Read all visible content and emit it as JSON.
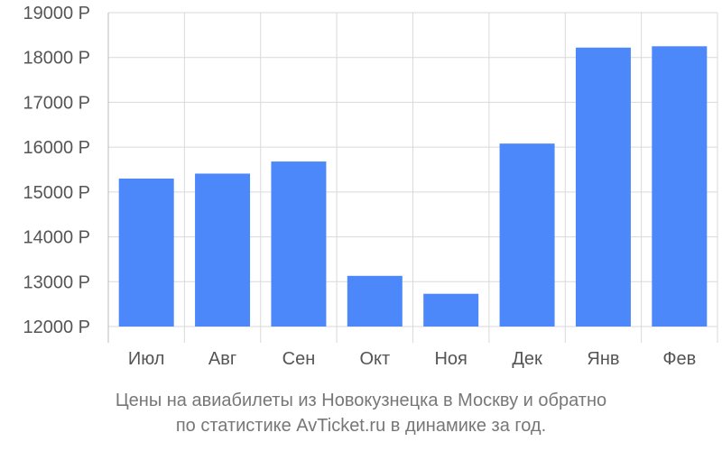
{
  "chart_data": {
    "type": "bar",
    "categories": [
      "Июл",
      "Авг",
      "Сен",
      "Окт",
      "Ноя",
      "Дек",
      "Янв",
      "Фев"
    ],
    "values": [
      15300,
      15410,
      15680,
      13130,
      12730,
      16080,
      18220,
      18250
    ],
    "ylim": [
      12000,
      19000
    ],
    "yticks": [
      12000,
      13000,
      14000,
      15000,
      16000,
      17000,
      18000,
      19000
    ],
    "ytick_labels": [
      "12000 Р",
      "13000 Р",
      "14000 Р",
      "15000 Р",
      "16000 Р",
      "17000 Р",
      "18000 Р",
      "19000 Р"
    ],
    "bar_color": "#4d88fa",
    "grid": true,
    "legend": "none"
  },
  "caption": {
    "line1": "Цены на авиабилеты из Новокузнецка в Москву и обратно",
    "line2": "по статистике AvTicket.ru в динамике за год."
  }
}
